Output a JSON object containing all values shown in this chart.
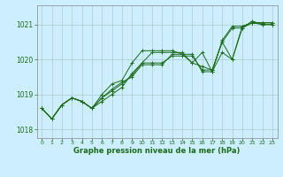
{
  "bg_color": "#cceeff",
  "grid_color": "#aacccc",
  "line_color": "#1a6b1a",
  "marker_color": "#1a6b1a",
  "text_color": "#1a6b1a",
  "xlabel": "Graphe pression niveau de la mer (hPa)",
  "xlim": [
    -0.5,
    23.5
  ],
  "ylim": [
    1017.75,
    1021.55
  ],
  "yticks": [
    1018,
    1019,
    1020,
    1021
  ],
  "xticks": [
    0,
    1,
    2,
    3,
    4,
    5,
    6,
    7,
    8,
    9,
    10,
    11,
    12,
    13,
    14,
    15,
    16,
    17,
    18,
    19,
    20,
    21,
    22,
    23
  ],
  "series": [
    [
      1018.6,
      1018.3,
      1018.7,
      1018.9,
      1018.8,
      1018.6,
      1018.8,
      1019.0,
      1019.2,
      1019.6,
      1019.9,
      1020.2,
      1020.2,
      1020.2,
      1020.2,
      1019.9,
      1019.8,
      1019.7,
      1020.5,
      1020.0,
      1020.9,
      1021.1,
      1021.0,
      1021.0
    ],
    [
      1018.6,
      1018.3,
      1018.7,
      1018.9,
      1018.8,
      1018.6,
      1018.9,
      1019.15,
      1019.35,
      1019.5,
      1019.85,
      1019.85,
      1019.85,
      1020.15,
      1020.15,
      1020.15,
      1019.65,
      1019.65,
      1020.55,
      1020.95,
      1020.95,
      1021.05,
      1021.05,
      1021.05
    ],
    [
      1018.6,
      1018.3,
      1018.7,
      1018.9,
      1018.8,
      1018.6,
      1018.9,
      1019.1,
      1019.3,
      1019.55,
      1019.9,
      1019.9,
      1019.9,
      1020.1,
      1020.1,
      1020.1,
      1019.7,
      1019.7,
      1020.5,
      1020.9,
      1020.9,
      1021.05,
      1021.05,
      1021.05
    ],
    [
      1018.6,
      1018.3,
      1018.7,
      1018.9,
      1018.8,
      1018.6,
      1019.0,
      1019.3,
      1019.4,
      1019.9,
      1020.25,
      1020.25,
      1020.25,
      1020.25,
      1020.15,
      1019.9,
      1020.2,
      1019.65,
      1020.2,
      1020.0,
      1020.95,
      1021.05,
      1021.0,
      1021.0
    ]
  ]
}
